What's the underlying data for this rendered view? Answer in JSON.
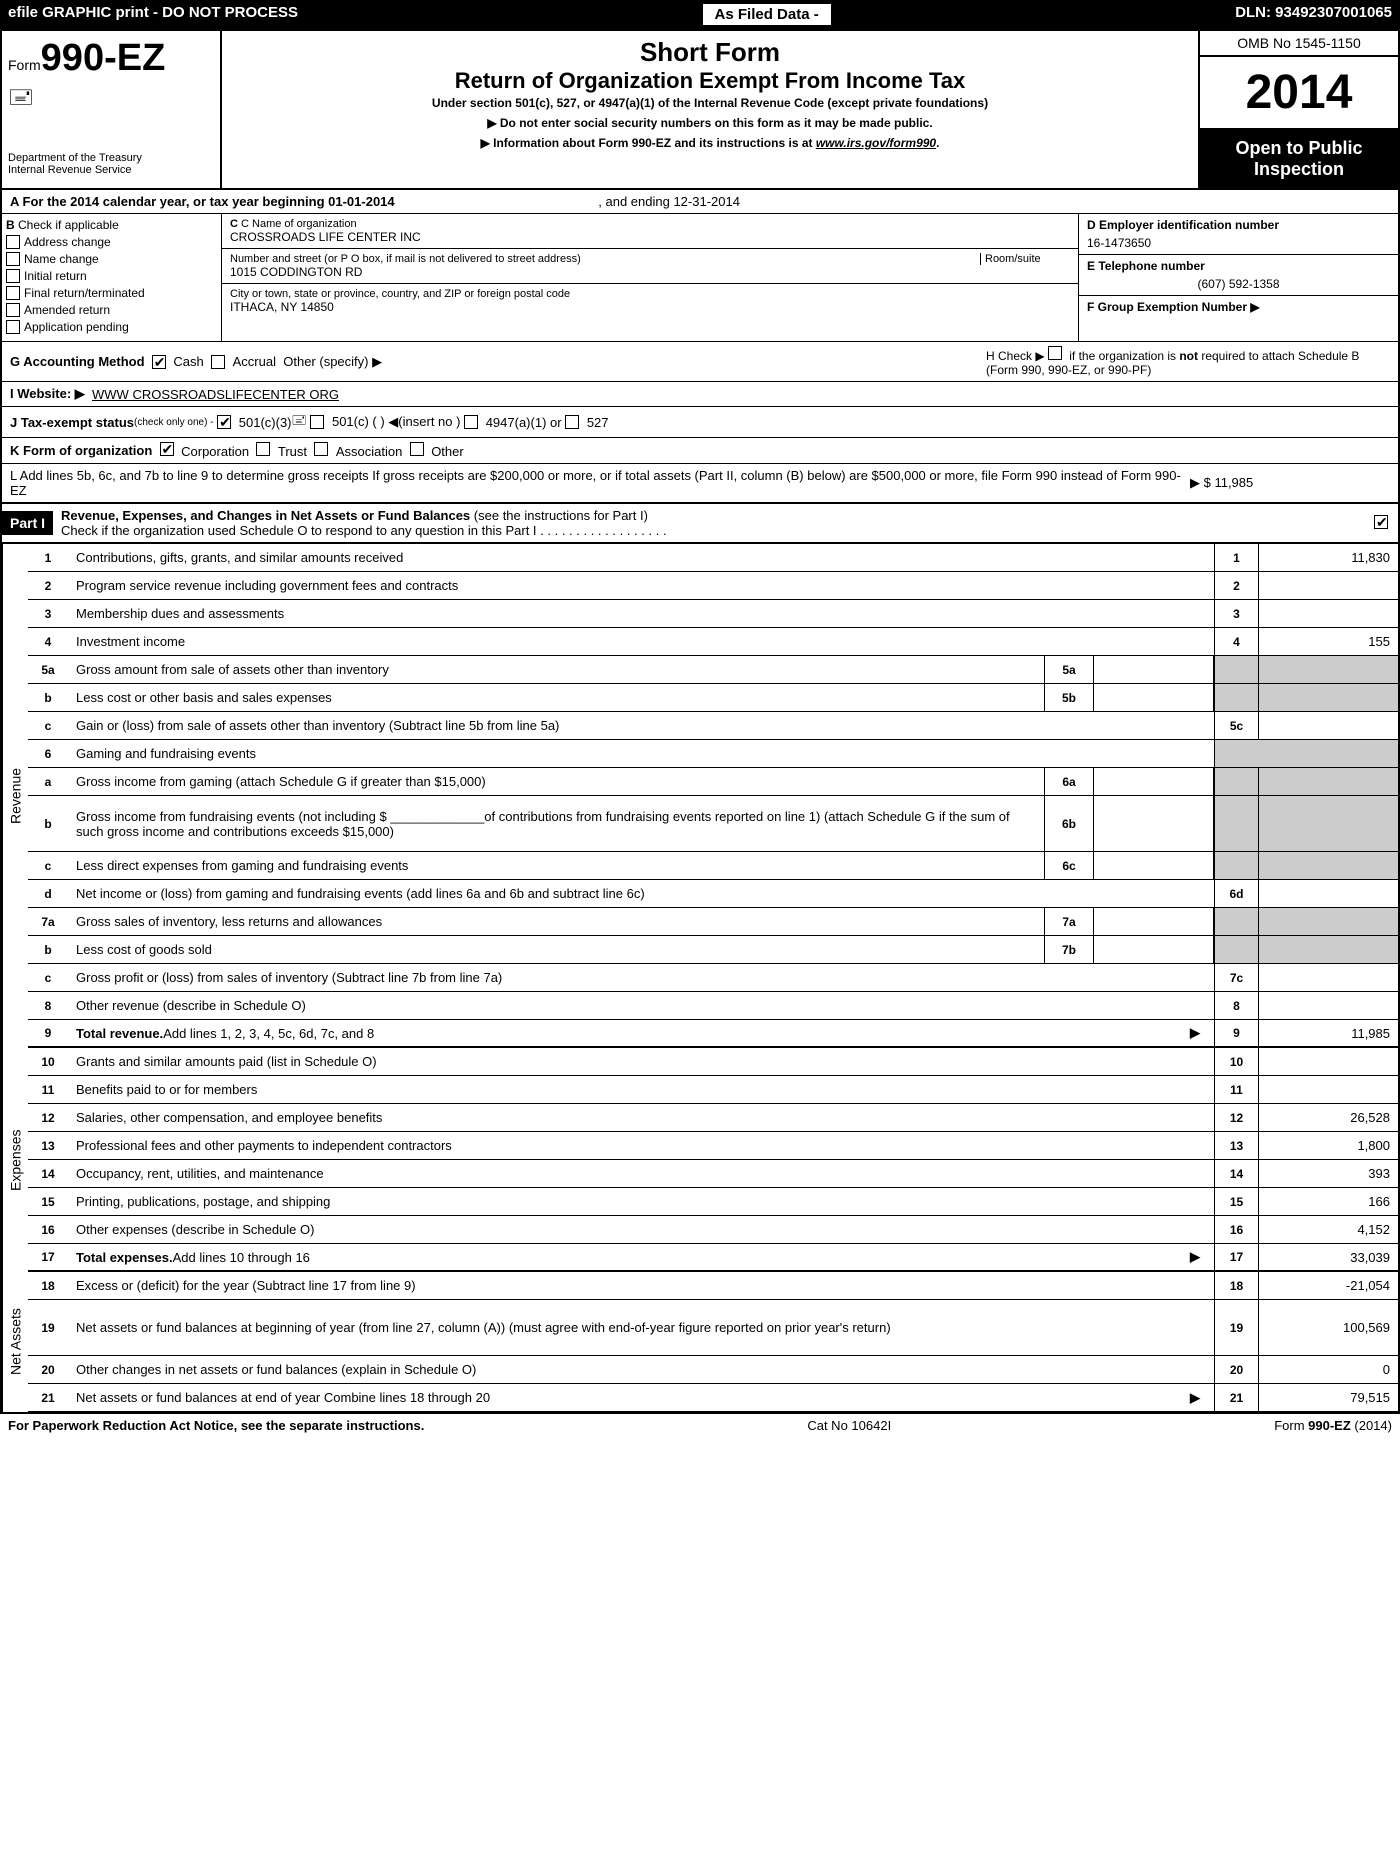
{
  "topBar": {
    "left": "efile GRAPHIC print - DO NOT PROCESS",
    "center": "As Filed Data -",
    "right": "DLN: 93492307001065"
  },
  "header": {
    "formPrefix": "Form",
    "formNum": "990-EZ",
    "dept1": "Department of the Treasury",
    "dept2": "Internal Revenue Service",
    "shortForm": "Short Form",
    "title": "Return of Organization Exempt From Income Tax",
    "subtitle": "Under section 501(c), 527, or 4947(a)(1) of the Internal Revenue Code (except private foundations)",
    "notice1": "▶ Do not enter social security numbers on this form as it may be made public.",
    "notice2": "▶ Information about Form 990-EZ and its instructions is at ",
    "noticeLink": "www.irs.gov/form990",
    "omb": "OMB No 1545-1150",
    "year": "2014",
    "inspection1": "Open to Public",
    "inspection2": "Inspection"
  },
  "rowA": {
    "label": "A  For the 2014 calendar year, or tax year beginning 01-01-2014",
    "ending": ", and ending 12-31-2014"
  },
  "colB": {
    "label": "B",
    "check": "Check if applicable",
    "items": [
      "Address change",
      "Name change",
      "Initial return",
      "Final return/terminated",
      "Amended return",
      "Application pending"
    ]
  },
  "colC": {
    "nameLabel": "C Name of organization",
    "name": "CROSSROADS LIFE CENTER INC",
    "streetLabel": "Number and street (or P  O  box, if mail is not delivered to street address)",
    "roomLabel": "Room/suite",
    "street": "1015 CODDINGTON RD",
    "cityLabel": "City or town, state or province, country, and ZIP or foreign postal code",
    "city": "ITHACA, NY  14850"
  },
  "colD": {
    "einLabel": "D Employer identification number",
    "ein": "16-1473650",
    "phoneLabel": "E Telephone number",
    "phone": "(607) 592-1358",
    "groupLabel": "F Group Exemption Number  ▶"
  },
  "rowG": {
    "label": "G Accounting Method",
    "cash": "Cash",
    "accrual": "Accrual",
    "other": "Other (specify) ▶"
  },
  "rowH": {
    "pre": "H  Check ▶",
    "text": "if the organization is ",
    "not": "not",
    "text2": " required to attach Schedule B (Form 990, 990-EZ, or 990-PF)"
  },
  "rowI": {
    "label": "I Website: ▶",
    "value": "WWW CROSSROADSLIFECENTER ORG"
  },
  "rowJ": {
    "label": "J Tax-exempt status",
    "sub": "(check only one) -",
    "opt1": "501(c)(3)",
    "opt2": "501(c) (  ) ◀(insert no )",
    "opt3": "4947(a)(1) or",
    "opt4": "527"
  },
  "rowK": {
    "label": "K Form of organization",
    "opts": [
      "Corporation",
      "Trust",
      "Association",
      "Other"
    ]
  },
  "rowL": {
    "text": "L Add lines 5b, 6c, and 7b to line 9 to determine gross receipts  If gross receipts are $200,000 or more, or if total assets (Part II, column (B) below) are $500,000 or more, file Form 990 instead of Form 990-EZ",
    "amount": "▶ $ 11,985"
  },
  "part1": {
    "label": "Part I",
    "title": "Revenue, Expenses, and Changes in Net Assets or Fund Balances",
    "sub": "(see the instructions for Part I)",
    "checkText": "Check if the organization used Schedule O to respond to any question in this Part I"
  },
  "lines": [
    {
      "n": "1",
      "desc": "Contributions, gifts, grants, and similar amounts received",
      "amt": "11,830"
    },
    {
      "n": "2",
      "desc": "Program service revenue including government fees and contracts",
      "amt": ""
    },
    {
      "n": "3",
      "desc": "Membership dues and assessments",
      "amt": ""
    },
    {
      "n": "4",
      "desc": "Investment income",
      "amt": "155"
    },
    {
      "n": "5a",
      "desc": "Gross amount from sale of assets other than inventory",
      "sub": "5a",
      "subVal": "",
      "shaded": true
    },
    {
      "n": "b",
      "desc": "Less  cost or other basis and sales expenses",
      "sub": "5b",
      "subVal": "",
      "shaded": true
    },
    {
      "n": "c",
      "desc": "Gain or (loss) from sale of assets other than inventory (Subtract line 5b from line 5a)",
      "amtN": "5c",
      "amt": ""
    },
    {
      "n": "6",
      "desc": "Gaming and fundraising events",
      "shaded": true,
      "noAmt": true
    },
    {
      "n": "a",
      "desc": "Gross income from gaming (attach Schedule G if greater than $15,000)",
      "sub": "6a",
      "subVal": "",
      "shaded": true
    },
    {
      "n": "b",
      "desc": "Gross income from fundraising events (not including $ _____________of contributions from fundraising events reported on line 1) (attach Schedule G if the sum of such gross income and contributions exceeds $15,000)",
      "sub": "6b",
      "subVal": "",
      "shaded": true,
      "tall": true
    },
    {
      "n": "c",
      "desc": "Less  direct expenses from gaming and fundraising events",
      "sub": "6c",
      "subVal": "",
      "shaded": true
    },
    {
      "n": "d",
      "desc": "Net income or (loss) from gaming and fundraising events (add lines 6a and 6b and subtract line 6c)",
      "amtN": "6d",
      "amt": ""
    },
    {
      "n": "7a",
      "desc": "Gross sales of inventory, less returns and allowances",
      "sub": "7a",
      "subVal": "",
      "shaded": true
    },
    {
      "n": "b",
      "desc": "Less  cost of goods sold",
      "sub": "7b",
      "subVal": "",
      "shaded": true
    },
    {
      "n": "c",
      "desc": "Gross profit or (loss) from sales of inventory (Subtract line 7b from line 7a)",
      "amtN": "7c",
      "amt": ""
    },
    {
      "n": "8",
      "desc": "Other revenue (describe in Schedule O)",
      "amt": ""
    },
    {
      "n": "9",
      "desc": "Total revenue. Add lines 1, 2, 3, 4, 5c, 6d, 7c, and 8",
      "amt": "11,985",
      "bold": true,
      "arrow": true
    }
  ],
  "expenses": [
    {
      "n": "10",
      "desc": "Grants and similar amounts paid (list in Schedule O)",
      "amt": ""
    },
    {
      "n": "11",
      "desc": "Benefits paid to or for members",
      "amt": ""
    },
    {
      "n": "12",
      "desc": "Salaries, other compensation, and employee benefits",
      "amt": "26,528"
    },
    {
      "n": "13",
      "desc": "Professional fees and other payments to independent contractors",
      "amt": "1,800"
    },
    {
      "n": "14",
      "desc": "Occupancy, rent, utilities, and maintenance",
      "amt": "393"
    },
    {
      "n": "15",
      "desc": "Printing, publications, postage, and shipping",
      "amt": "166"
    },
    {
      "n": "16",
      "desc": "Other expenses (describe in Schedule O)",
      "amt": "4,152"
    },
    {
      "n": "17",
      "desc": "Total expenses. Add lines 10 through 16",
      "amt": "33,039",
      "bold": true,
      "arrow": true
    }
  ],
  "netAssets": [
    {
      "n": "18",
      "desc": "Excess or (deficit) for the year (Subtract line 17 from line 9)",
      "amt": "-21,054"
    },
    {
      "n": "19",
      "desc": "Net assets or fund balances at beginning of year (from line 27, column (A)) (must agree with end-of-year figure reported on prior year's return)",
      "amt": "100,569",
      "tall": true
    },
    {
      "n": "20",
      "desc": "Other changes in net assets or fund balances (explain in Schedule O)",
      "amt": "0"
    },
    {
      "n": "21",
      "desc": "Net assets or fund balances at end of year  Combine lines 18 through 20",
      "amt": "79,515",
      "arrow": true
    }
  ],
  "sections": {
    "revenue": "Revenue",
    "expenses": "Expenses",
    "netAssets": "Net Assets"
  },
  "footer": {
    "left": "For Paperwork Reduction Act Notice, see the separate instructions.",
    "center": "Cat No  10642I",
    "right": "Form 990-EZ (2014)"
  }
}
